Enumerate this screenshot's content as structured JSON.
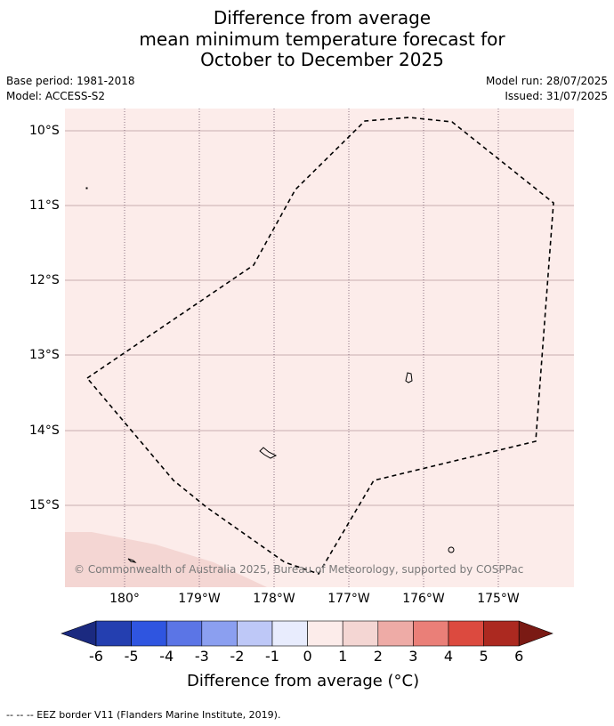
{
  "title": {
    "line1": "Difference from average",
    "line2": "mean minimum temperature forecast for",
    "line3": "October to December 2025"
  },
  "meta": {
    "base_period": "Base period: 1981-2018",
    "model": "Model: ACCESS-S2",
    "model_run": "Model run: 28/07/2025",
    "issued": "Issued: 31/07/2025"
  },
  "map": {
    "background_color": "#fcecea",
    "lower_left_color": "#f4d6d3",
    "lat_labels": [
      "10°S",
      "11°S",
      "12°S",
      "13°S",
      "14°S",
      "15°S"
    ],
    "lon_labels": [
      "180°",
      "179°W",
      "178°W",
      "177°W",
      "176°W",
      "175°W"
    ],
    "credit": "© Commonwealth of Australia 2025, Bureau of Meteorology, supported by COSPPac"
  },
  "colorbar": {
    "labels": [
      "-6",
      "-5",
      "-4",
      "-3",
      "-2",
      "-1",
      "0",
      "1",
      "2",
      "3",
      "4",
      "5",
      "6"
    ],
    "colors": [
      "#1b2a80",
      "#243fb0",
      "#2f55e0",
      "#5b75e6",
      "#8b9ff0",
      "#bec8f7",
      "#e8ecfd",
      "#fcecea",
      "#f4d6d3",
      "#eeaba6",
      "#ea7f78",
      "#dc4a3f",
      "#ac2920",
      "#7a1a14"
    ],
    "title": "Difference from average (°C)"
  },
  "footer": "--  --  -- EEZ border V11 (Flanders Marine Institute, 2019)."
}
